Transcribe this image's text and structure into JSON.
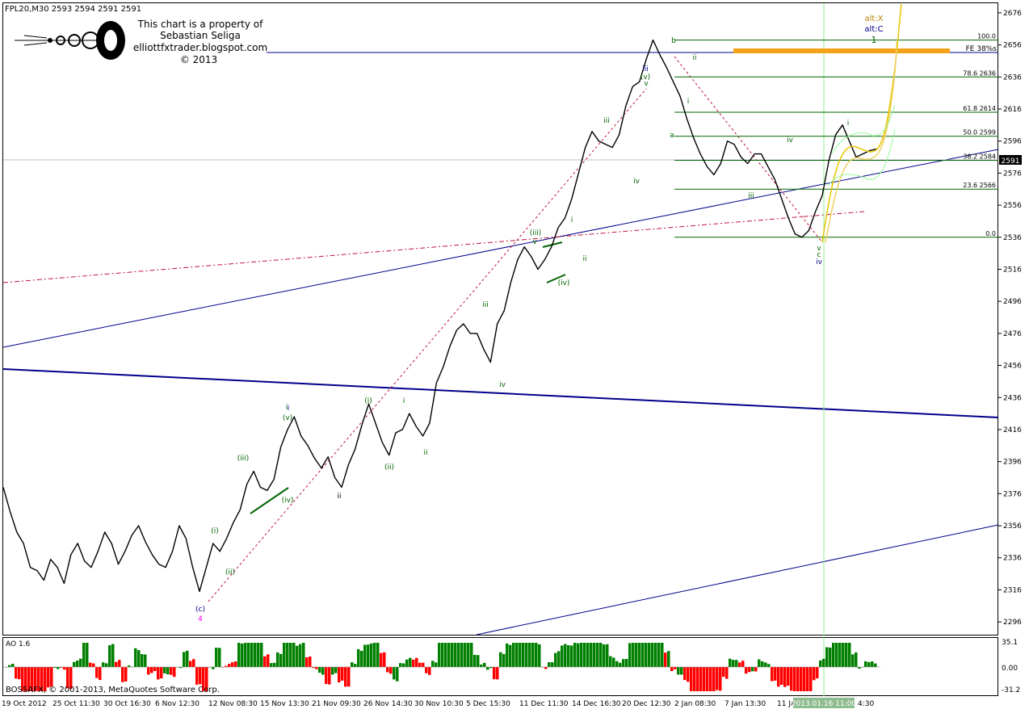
{
  "header": {
    "symbol_line": "FPL20,M30  2593 2594 2591 2591",
    "watermark_lines": [
      "This chart is a property of",
      "Sebastian Seliga",
      "elliottfxtrader.blogspot.com",
      "© 2013"
    ]
  },
  "alt_labels": {
    "alt_x": "alt:X",
    "alt_c": "alt:C",
    "one": "1"
  },
  "price_axis": {
    "ticks": [
      "2676",
      "2656",
      "2636",
      "2616",
      "2596",
      "2576",
      "2556",
      "2536",
      "2516",
      "2496",
      "2476",
      "2456",
      "2436",
      "2416",
      "2396",
      "2376",
      "2356",
      "2336",
      "2316",
      "2296"
    ],
    "current_price": "2591",
    "ylim": [
      2288,
      2682
    ]
  },
  "time_axis": {
    "ticks": [
      "19 Oct 2012",
      "25 Oct 11:30",
      "30 Oct 16:30",
      "6 Nov 12:30",
      "12 Nov 08:30",
      "15 Nov 13:30",
      "21 Nov 09:30",
      "26 Nov 14:30",
      "30 Nov 10:30",
      "5 Dec 15:30",
      "11 Dec 11:30",
      "14 Dec 16:30",
      "20 Dec 12:30",
      "2 Jan 08:30",
      "7 Jan 13:30",
      "11 Ja",
      "4:30"
    ],
    "cursor_label": "2013.01.16 11:00"
  },
  "fib_levels": [
    {
      "label": "100.0",
      "value": 2659
    },
    {
      "label": "78.6 2636",
      "value": 2636
    },
    {
      "label": "61.8 2614",
      "value": 2614
    },
    {
      "label": "50.0 2599",
      "value": 2599
    },
    {
      "label": "38.2 2584",
      "value": 2584
    },
    {
      "label": "23.6 2566",
      "value": 2566
    },
    {
      "label": "0.0",
      "value": 2536
    }
  ],
  "fe_label": "FE 38%s",
  "wave_labels": [
    {
      "t": "(c)",
      "c": "navy"
    },
    {
      "t": "4",
      "c": "magenta"
    },
    {
      "t": "i",
      "c": "green"
    },
    {
      "t": "(i)",
      "c": "green"
    },
    {
      "t": "(ii)",
      "c": "green"
    },
    {
      "t": "(iii)",
      "c": "green"
    },
    {
      "t": "(iv)",
      "c": "green"
    },
    {
      "t": "(v)",
      "c": "green"
    },
    {
      "t": "i",
      "c": "navy"
    },
    {
      "t": "ii",
      "c": "black"
    },
    {
      "t": "(i)",
      "c": "green"
    },
    {
      "t": "(ii)",
      "c": "green"
    },
    {
      "t": "i",
      "c": "green"
    },
    {
      "t": "ii",
      "c": "green"
    },
    {
      "t": "iii",
      "c": "green"
    },
    {
      "t": "iv",
      "c": "green"
    },
    {
      "t": "(iii)",
      "c": "green"
    },
    {
      "t": "v",
      "c": "green"
    },
    {
      "t": "(iv)",
      "c": "green"
    },
    {
      "t": "i",
      "c": "green"
    },
    {
      "t": "ii",
      "c": "green"
    },
    {
      "t": "iii",
      "c": "green"
    },
    {
      "t": "iv",
      "c": "green"
    },
    {
      "t": "iii",
      "c": "navy"
    },
    {
      "t": "(v)",
      "c": "green"
    },
    {
      "t": "v",
      "c": "green"
    },
    {
      "t": "b",
      "c": "green"
    },
    {
      "t": "a",
      "c": "green"
    },
    {
      "t": "ii",
      "c": "green"
    },
    {
      "t": "i",
      "c": "green"
    },
    {
      "t": "iii",
      "c": "green"
    },
    {
      "t": "iv",
      "c": "green"
    },
    {
      "t": "v",
      "c": "green"
    },
    {
      "t": "c",
      "c": "green"
    },
    {
      "t": "iv",
      "c": "navy"
    },
    {
      "t": "i",
      "c": "green"
    }
  ],
  "indicator": {
    "label": "AO 1.6",
    "ticks": [
      "35.1",
      "0.00",
      "-31.2"
    ],
    "copyright": "BOSSAFX, © 2001-2013, MetaQuotes Software Corp."
  },
  "colors": {
    "price_line": "#000000",
    "trend_blue": "#00008b",
    "fib_green": "#006400",
    "dashed_red": "#c0143c",
    "target_orange": "#f5a21b",
    "projection_yellow": "#e6c700",
    "ao_up": "#008000",
    "ao_down": "#ff0000"
  },
  "chart_data": {
    "type": "line",
    "series": [
      {
        "values": [
          2380,
          2365,
          2352,
          2345,
          2330,
          2328,
          2322,
          2335,
          2330,
          2320,
          2338,
          2345,
          2334,
          2330,
          2340,
          2352,
          2345,
          2332,
          2340,
          2350,
          2356,
          2346,
          2338,
          2332,
          2330,
          2340,
          2356,
          2348,
          2330,
          2315,
          2330,
          2345,
          2340,
          2348,
          2358,
          2366,
          2382,
          2390,
          2380,
          2378,
          2385,
          2405,
          2416,
          2424,
          2412,
          2406,
          2398,
          2392,
          2399,
          2386,
          2380,
          2394,
          2404,
          2419,
          2432,
          2420,
          2408,
          2400,
          2414,
          2416,
          2426,
          2418,
          2412,
          2420,
          2445,
          2455,
          2468,
          2478,
          2482,
          2476,
          2476,
          2466,
          2458,
          2482,
          2490,
          2508,
          2522,
          2530,
          2524,
          2516,
          2522,
          2530,
          2542,
          2548,
          2560,
          2576,
          2592,
          2602,
          2596,
          2594,
          2592,
          2600,
          2618,
          2630,
          2633,
          2647,
          2659,
          2650,
          2642,
          2633,
          2624,
          2610,
          2598,
          2588,
          2580,
          2575,
          2582,
          2596,
          2594,
          2586,
          2582,
          2588,
          2588,
          2580,
          2572,
          2560,
          2548,
          2538,
          2536,
          2540,
          2552,
          2562,
          2584,
          2600,
          2606,
          2596,
          2586,
          2588,
          2590,
          2591
        ],
        "ohlc_last": [
          2593,
          2594,
          2591,
          2591
        ]
      }
    ],
    "ylim": [
      2288,
      2682
    ]
  }
}
